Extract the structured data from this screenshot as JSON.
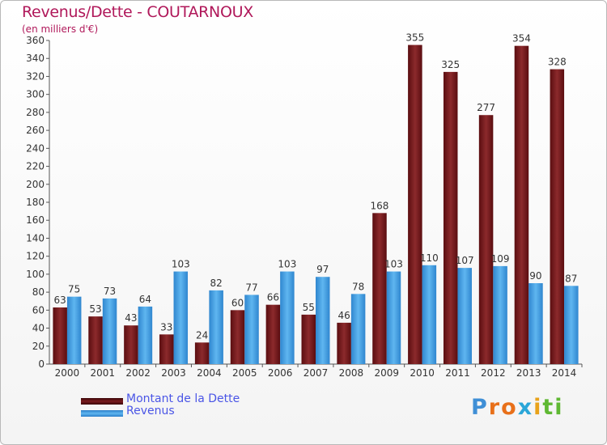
{
  "chart_data": {
    "type": "bar",
    "title": "Revenus/Dette - COUTARNOUX",
    "subtitle": "(en milliers d'€)",
    "xlabel": "",
    "ylabel": "",
    "ylim": [
      0,
      360
    ],
    "ytick_step": 20,
    "grid": false,
    "categories": [
      "2000",
      "2001",
      "2002",
      "2003",
      "2004",
      "2005",
      "2006",
      "2007",
      "2008",
      "2009",
      "2010",
      "2011",
      "2012",
      "2013",
      "2014"
    ],
    "series": [
      {
        "name": "Montant de la Dette",
        "color": "#7a1a1e",
        "values": [
          63,
          53,
          43,
          33,
          24,
          60,
          66,
          55,
          46,
          168,
          355,
          325,
          277,
          354,
          328
        ]
      },
      {
        "name": "Revenus",
        "color": "#3b9be0",
        "values": [
          75,
          73,
          64,
          103,
          82,
          77,
          103,
          97,
          78,
          103,
          110,
          107,
          109,
          90,
          87
        ]
      }
    ],
    "legend_position": "bottom-left"
  },
  "brand": {
    "letters": [
      "P",
      "r",
      "o",
      "x",
      "i",
      "t",
      "i"
    ],
    "colors": [
      "#3f8fd6",
      "#e8701a",
      "#e8701a",
      "#2aa6d8",
      "#e8a21a",
      "#5fb833",
      "#5fb833"
    ]
  }
}
